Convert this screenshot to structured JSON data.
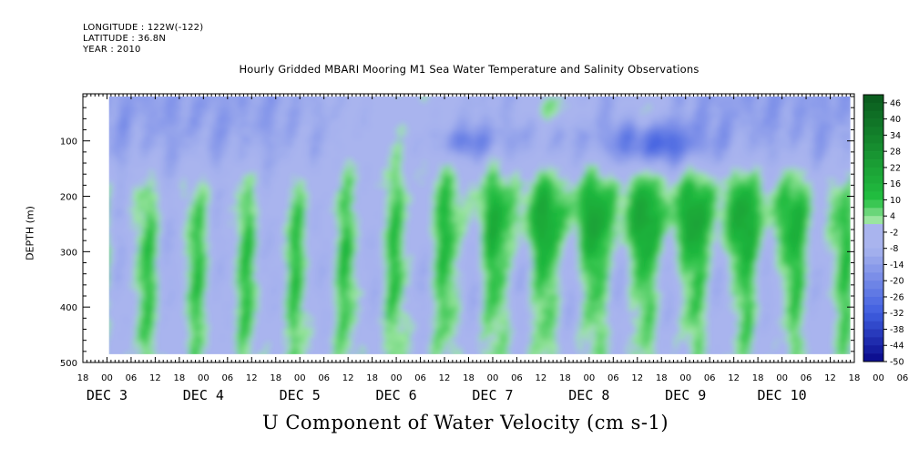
{
  "header": {
    "longitude": "LONGITUDE : 122W(-122)",
    "latitude": "LATITUDE : 36.8N",
    "year": "YEAR : 2010",
    "title": "Hourly Gridded MBARI Mooring M1 Sea Water Temperature and Salinity Observations"
  },
  "chart_data": {
    "type": "heatmap",
    "title": "Hourly Gridded MBARI Mooring M1 Sea Water Temperature and Salinity Observations",
    "xlabel": "U Component of Water Velocity (cm s-1)",
    "ylabel": "DEPTH (m)",
    "x_hour_ticks": [
      "18",
      "00",
      "06",
      "12",
      "18",
      "00",
      "06",
      "12",
      "18",
      "00",
      "06",
      "12",
      "18",
      "00",
      "06",
      "12",
      "18",
      "00",
      "06",
      "12",
      "18",
      "00",
      "06",
      "12",
      "18",
      "00",
      "06",
      "12",
      "18",
      "00",
      "06",
      "12",
      "18",
      "00",
      "06",
      "12",
      "18"
    ],
    "x_day_labels": [
      "DEC 3",
      "DEC 4",
      "DEC 5",
      "DEC 6",
      "DEC 7",
      "DEC 8",
      "DEC 9",
      "DEC 10"
    ],
    "x_range": [
      "2010-12-02T18:00",
      "2010-12-10T18:00"
    ],
    "data_x_range": [
      "2010-12-03T00:30",
      "2010-12-10T17:00"
    ],
    "y_ticks": [
      100,
      200,
      300,
      400,
      500
    ],
    "ylim": [
      500,
      15
    ],
    "data_depth_range": [
      20,
      485
    ],
    "colorbar_labels": [
      46,
      40,
      34,
      28,
      22,
      16,
      10,
      4,
      -2,
      -8,
      -14,
      -20,
      -26,
      -32,
      -38,
      -44,
      -50
    ],
    "colorbar_range": [
      -50,
      49
    ],
    "colorbar_step": 3,
    "colors": {
      "strong_negative": "#08088a",
      "negative": "#3f5ee0",
      "weak_negative": "#a9b4ee",
      "weak_positive": "#b2ecb2",
      "positive": "#22c040",
      "strong_positive": "#0a5a1e"
    },
    "features": [
      {
        "name": "near-surface negative band",
        "time_range": [
          "2010-12-03T00:30",
          "2010-12-07T12:00"
        ],
        "depth_range": [
          20,
          150
        ],
        "value": -12
      },
      {
        "name": "mid-depth positive core",
        "time_range": [
          "2010-12-07T00:00",
          "2010-12-10T12:00"
        ],
        "depth_range": [
          170,
          300
        ],
        "value": 12
      },
      {
        "name": "surface positive patch",
        "time_range": [
          "2010-12-07T18:00",
          "2010-12-08T06:00"
        ],
        "depth_range": [
          20,
          60
        ],
        "value": 12
      },
      {
        "name": "subsurface negative patch",
        "time_range": [
          "2010-12-08T12:00",
          "2010-12-09T06:00"
        ],
        "depth_range": [
          80,
          130
        ],
        "value": -18
      }
    ],
    "grid": false,
    "legend": "colorbar-right"
  }
}
